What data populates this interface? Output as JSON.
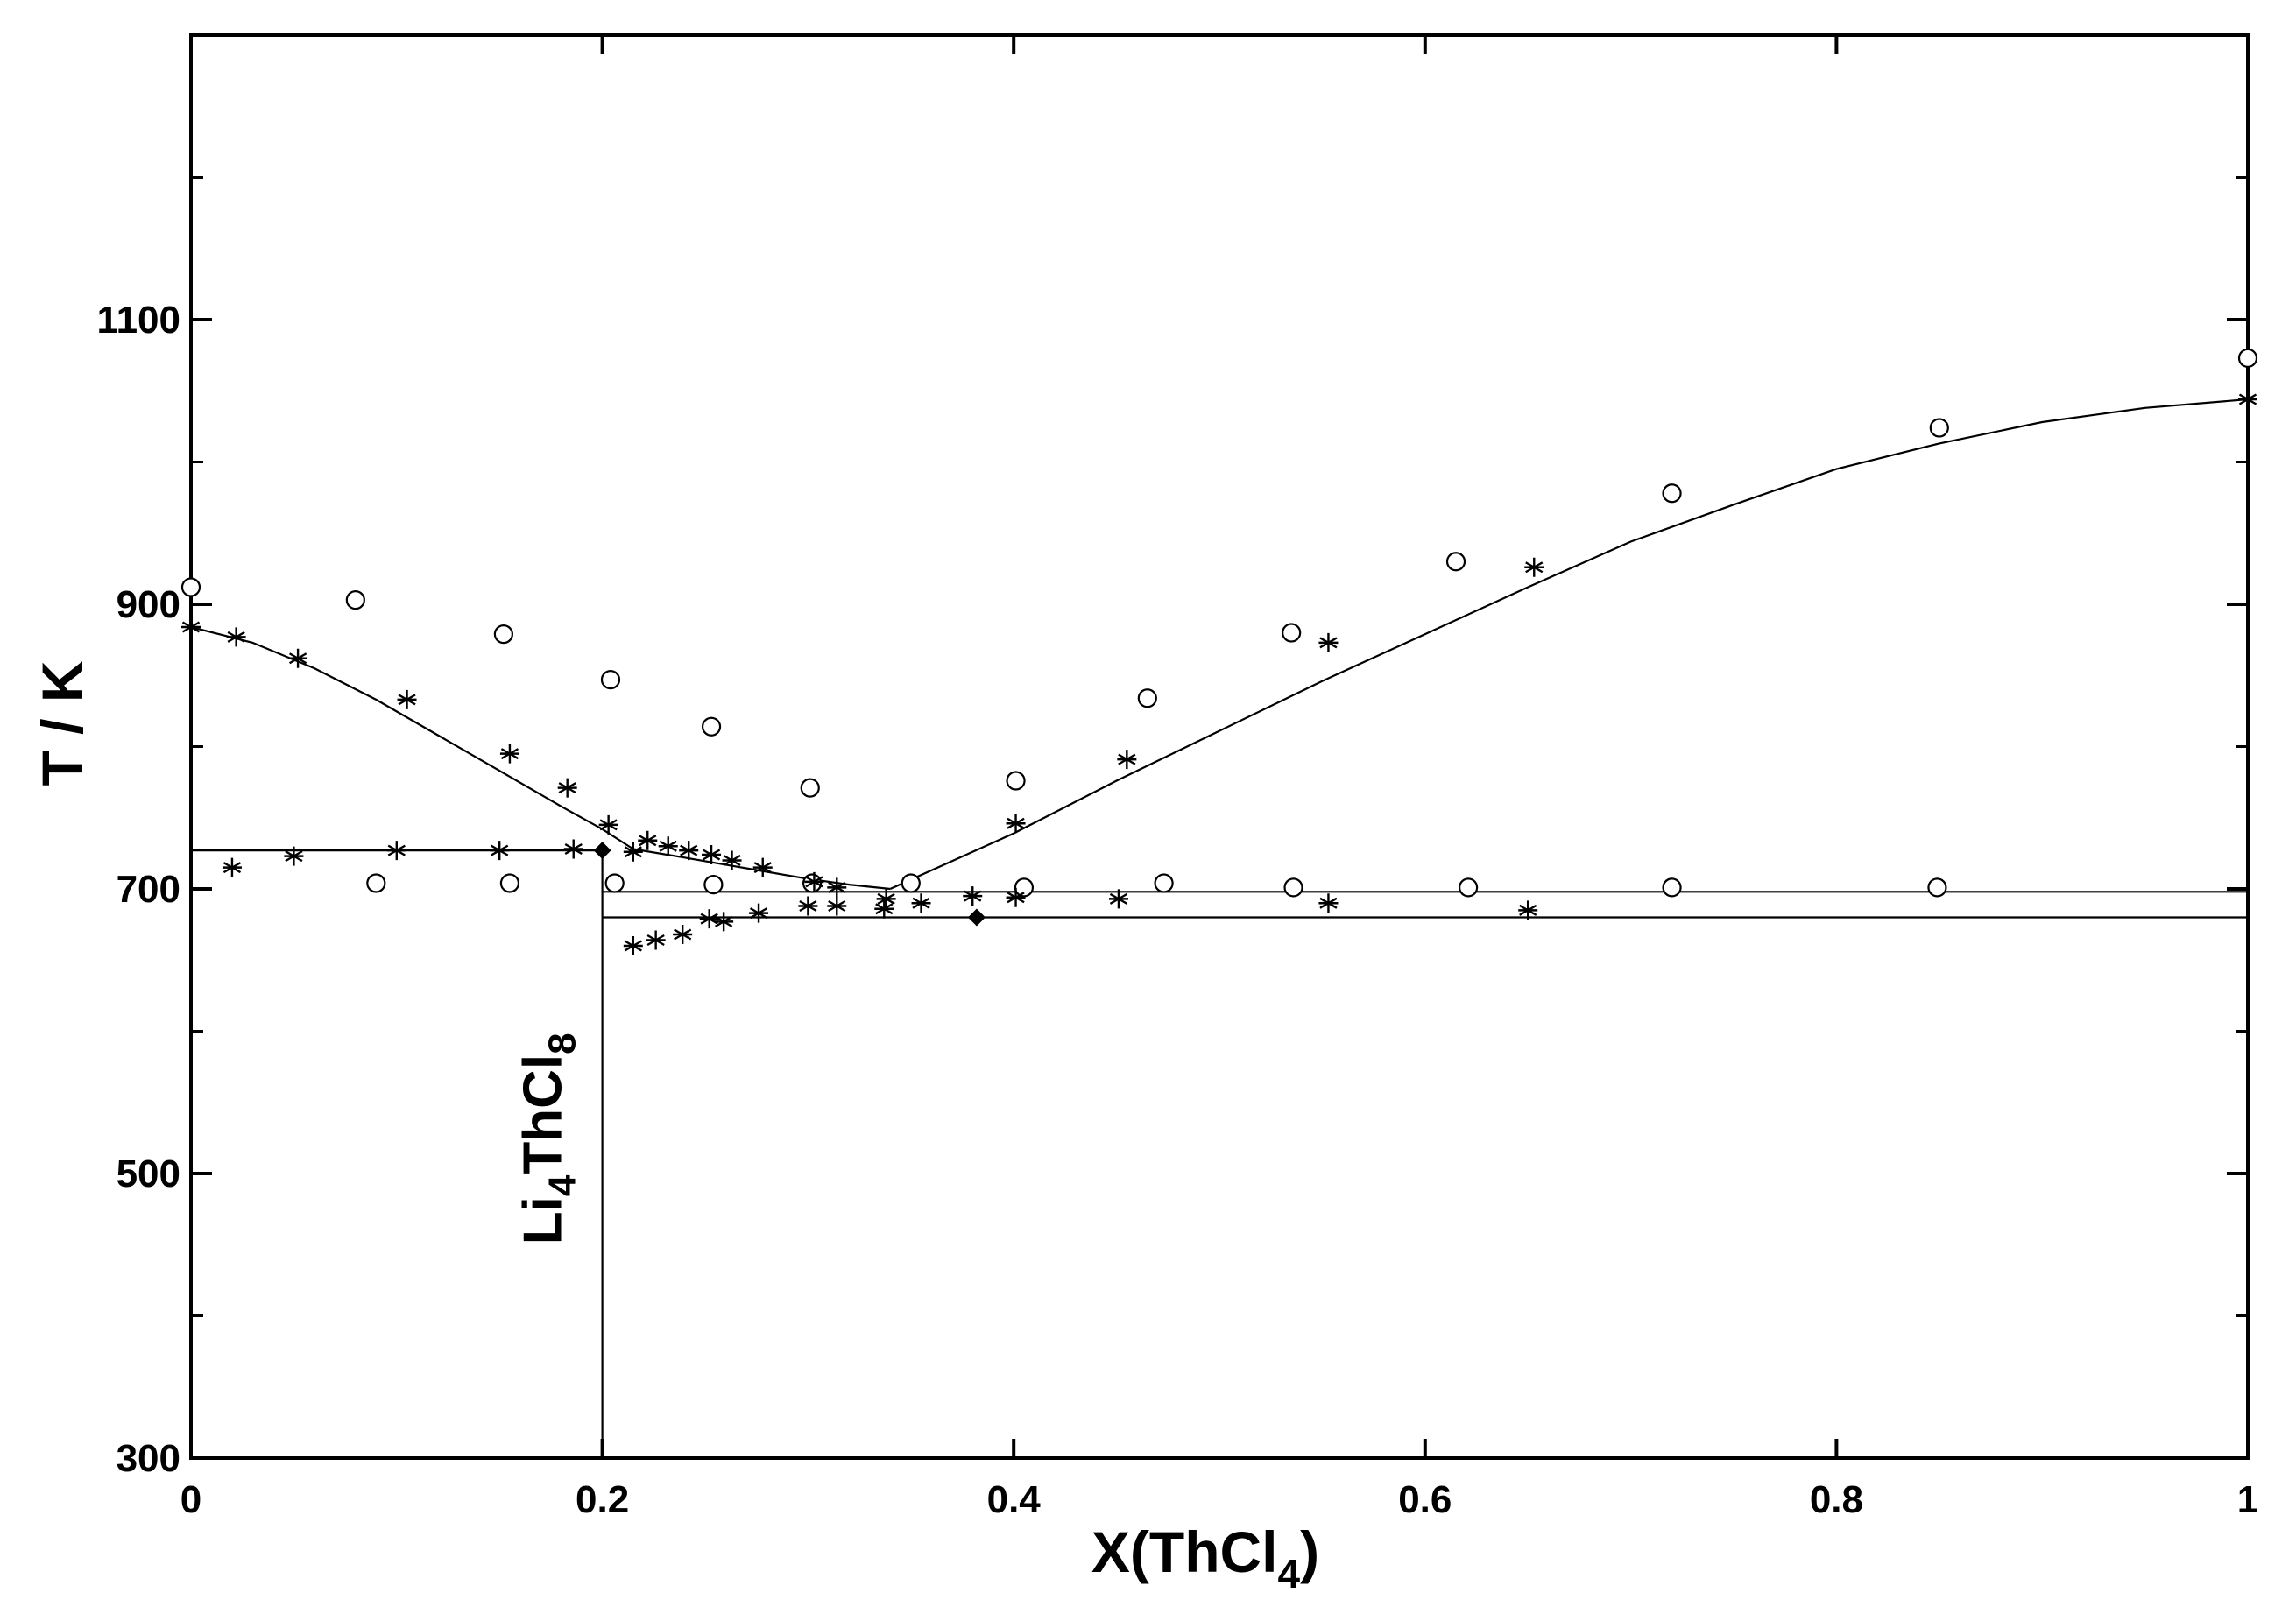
{
  "chart_data": {
    "type": "scatter",
    "title": "",
    "xlabel": "X(ThCl",
    "xlabel_sub": "4",
    "xlabel_close": ")",
    "ylabel": "T / K",
    "xlim": [
      0,
      1
    ],
    "ylim": [
      300,
      1300
    ],
    "grid": false,
    "x_ticks": [
      {
        "value": 0,
        "label": "0"
      },
      {
        "value": 0.2,
        "label": "0.2"
      },
      {
        "value": 0.4,
        "label": "0.4"
      },
      {
        "value": 0.6,
        "label": "0.6"
      },
      {
        "value": 0.8,
        "label": "0.8"
      },
      {
        "value": 1,
        "label": "1"
      }
    ],
    "y_ticks": [
      {
        "value": 300,
        "label": "300"
      },
      {
        "value": 500,
        "label": "500"
      },
      {
        "value": 700,
        "label": "700"
      },
      {
        "value": 900,
        "label": "900"
      },
      {
        "value": 1100,
        "label": "1100"
      }
    ],
    "y_minor_ticks": [
      400,
      600,
      800,
      1000,
      1200
    ],
    "annotations": [
      {
        "text": "Li",
        "sub": "4",
        "text2": "ThCl",
        "sub2": "8",
        "x": 0.18,
        "y": 450
      }
    ],
    "lines": [
      {
        "name": "liquidus-left",
        "points": [
          [
            0,
            884
          ],
          [
            0.03,
            873
          ],
          [
            0.06,
            855
          ],
          [
            0.09,
            833
          ],
          [
            0.12,
            808
          ],
          [
            0.15,
            783
          ],
          [
            0.18,
            758
          ],
          [
            0.2,
            742
          ],
          [
            0.215,
            728
          ]
        ]
      },
      {
        "name": "liquidus-middle",
        "points": [
          [
            0.215,
            728
          ],
          [
            0.24,
            722
          ],
          [
            0.26,
            717
          ],
          [
            0.28,
            712
          ],
          [
            0.3,
            707
          ],
          [
            0.32,
            703
          ],
          [
            0.34,
            700
          ]
        ]
      },
      {
        "name": "liquidus-right",
        "points": [
          [
            0.34,
            700
          ],
          [
            0.4,
            739
          ],
          [
            0.45,
            776
          ],
          [
            0.5,
            811
          ],
          [
            0.55,
            846
          ],
          [
            0.6,
            879
          ],
          [
            0.65,
            912
          ],
          [
            0.7,
            944
          ],
          [
            0.75,
            970
          ],
          [
            0.8,
            995
          ],
          [
            0.85,
            1013
          ],
          [
            0.9,
            1028
          ],
          [
            0.95,
            1038
          ],
          [
            1.0,
            1044
          ]
        ]
      },
      {
        "name": "peritectic-line",
        "points": [
          [
            0,
            727
          ],
          [
            0.2,
            727
          ]
        ]
      },
      {
        "name": "eutectic-line",
        "points": [
          [
            0.2,
            698
          ],
          [
            1.0,
            698
          ]
        ]
      },
      {
        "name": "solidus-line",
        "points": [
          [
            0.2,
            680
          ],
          [
            1.0,
            680
          ]
        ]
      },
      {
        "name": "compound-line",
        "points": [
          [
            0.2,
            300
          ],
          [
            0.2,
            727
          ]
        ]
      }
    ],
    "series": [
      {
        "marker": "circle",
        "points": [
          [
            0,
            912
          ],
          [
            0.08,
            903
          ],
          [
            0.152,
            879
          ],
          [
            0.204,
            847
          ],
          [
            0.253,
            814
          ],
          [
            0.301,
            771
          ],
          [
            0.401,
            776
          ],
          [
            0.465,
            834
          ],
          [
            0.535,
            880
          ],
          [
            0.615,
            930
          ],
          [
            0.72,
            978
          ],
          [
            0.85,
            1024
          ],
          [
            1.0,
            1073
          ],
          [
            0.09,
            704
          ],
          [
            0.155,
            704
          ],
          [
            0.206,
            704
          ],
          [
            0.254,
            703
          ],
          [
            0.302,
            704
          ],
          [
            0.35,
            704
          ],
          [
            0.405,
            701
          ],
          [
            0.473,
            704
          ],
          [
            0.536,
            701
          ],
          [
            0.621,
            701
          ],
          [
            0.72,
            701
          ],
          [
            0.849,
            701
          ]
        ]
      },
      {
        "marker": "star",
        "points": [
          [
            0,
            884
          ],
          [
            0.022,
            877
          ],
          [
            0.052,
            862
          ],
          [
            0.105,
            833
          ],
          [
            0.155,
            795
          ],
          [
            0.183,
            771
          ],
          [
            0.203,
            745
          ],
          [
            0.215,
            726
          ],
          [
            0.222,
            734
          ],
          [
            0.232,
            730
          ],
          [
            0.242,
            727
          ],
          [
            0.253,
            724
          ],
          [
            0.263,
            720
          ],
          [
            0.278,
            715
          ],
          [
            0.303,
            705
          ],
          [
            0.314,
            701
          ],
          [
            0.338,
            693
          ],
          [
            0.355,
            690
          ],
          [
            0.38,
            695
          ],
          [
            0.401,
            746
          ],
          [
            0.455,
            791
          ],
          [
            0.553,
            873
          ],
          [
            0.653,
            926
          ],
          [
            1.0,
            1044
          ],
          [
            0.02,
            715
          ],
          [
            0.05,
            723
          ],
          [
            0.1,
            727
          ],
          [
            0.15,
            727
          ],
          [
            0.186,
            728
          ],
          [
            0.215,
            660
          ],
          [
            0.226,
            664
          ],
          [
            0.239,
            668
          ],
          [
            0.252,
            679
          ],
          [
            0.259,
            677
          ],
          [
            0.276,
            683
          ],
          [
            0.3,
            688
          ],
          [
            0.314,
            688
          ],
          [
            0.337,
            686
          ],
          [
            0.401,
            694
          ],
          [
            0.451,
            693
          ],
          [
            0.553,
            690
          ],
          [
            0.65,
            685
          ]
        ]
      },
      {
        "marker": "diamond",
        "points": [
          [
            0.2,
            727
          ],
          [
            0.382,
            680
          ]
        ]
      }
    ]
  }
}
